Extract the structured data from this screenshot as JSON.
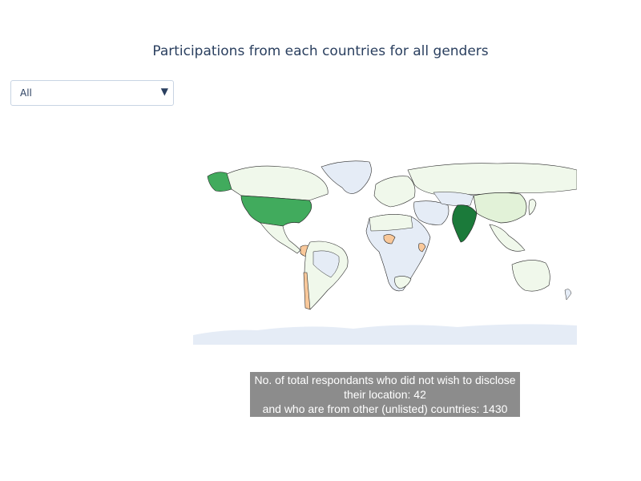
{
  "title": "Participations from each countries for all genders",
  "dropdown": {
    "selected": "All",
    "caret_icon": "triangle-down-icon"
  },
  "map": {
    "type": "choropleth",
    "projection": "natural-earth",
    "colors": {
      "land": "#e5ecf6",
      "ocean": "#ffffff",
      "border": "#2a2a2a",
      "scale_low": "#f0f8eb",
      "scale_high": "#1b7a3a",
      "orange_tone": "#f9c89a"
    },
    "highlighted": [
      {
        "country": "India",
        "level": "highest",
        "color": "#1b7a3a"
      },
      {
        "country": "United States",
        "level": "high",
        "color": "#41ab5d"
      },
      {
        "country": "China",
        "level": "medium-low",
        "color": "#e2f2d8"
      }
    ]
  },
  "note": {
    "line1": "No. of total respondants who did not wish to disclose",
    "line2": "their location: 42",
    "line3": "and who are from other (unlisted) countries: 1430"
  }
}
